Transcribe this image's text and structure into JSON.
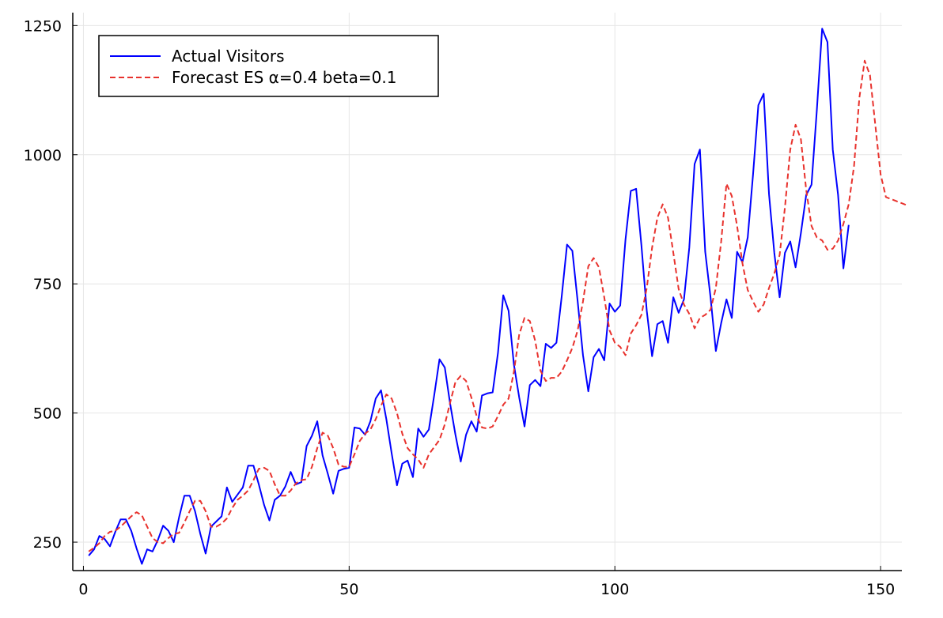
{
  "chart_data": {
    "type": "line",
    "title": "",
    "xlabel": "",
    "ylabel": "",
    "xlim": [
      -2,
      154
    ],
    "ylim": [
      195,
      1275
    ],
    "grid": true,
    "legend_position": "top-left",
    "x_ticks": [
      0,
      50,
      100,
      150
    ],
    "y_ticks": [
      250,
      500,
      750,
      1000,
      1250
    ],
    "x_tick_labels": [
      "0",
      "50",
      "100",
      "150"
    ],
    "y_tick_labels": [
      "250",
      "500",
      "750",
      "1000",
      "1250"
    ],
    "series": [
      {
        "name": "Actual Visitors",
        "color": "#0000ff",
        "style": "solid",
        "x_start": 1,
        "values": [
          224,
          236,
          262,
          256,
          242,
          270,
          294,
          294,
          272,
          238,
          208,
          236,
          232,
          254,
          282,
          272,
          250,
          298,
          340,
          340,
          310,
          266,
          228,
          280,
          290,
          300,
          356,
          328,
          342,
          356,
          398,
          398,
          362,
          322,
          292,
          332,
          340,
          358,
          386,
          362,
          366,
          436,
          456,
          484,
          418,
          382,
          344,
          388,
          392,
          394,
          472,
          470,
          458,
          484,
          528,
          544,
          488,
          422,
          360,
          402,
          408,
          376,
          470,
          454,
          468,
          534,
          604,
          588,
          518,
          458,
          406,
          458,
          484,
          464,
          534,
          538,
          540,
          616,
          728,
          698,
          594,
          530,
          474,
          554,
          564,
          552,
          634,
          626,
          636,
          726,
          826,
          814,
          716,
          612,
          542,
          608,
          624,
          602,
          712,
          696,
          708,
          836,
          930,
          934,
          824,
          698,
          610,
          672,
          678,
          636,
          724,
          694,
          720,
          820,
          982,
          1010,
          812,
          724,
          620,
          674,
          720,
          684,
          812,
          792,
          840,
          962,
          1096,
          1118,
          924,
          810,
          724,
          810,
          832,
          782,
          848,
          922,
          942,
          1086,
          1244,
          1218,
          1010,
          922,
          780,
          864
        ]
      },
      {
        "name": "Forecast ES α=0.4 beta=0.1",
        "color": "#e8322d",
        "style": "dashed",
        "x_start": 1,
        "values": [
          232,
          239,
          248,
          262,
          270,
          272,
          280,
          290,
          300,
          308,
          302,
          280,
          258,
          250,
          248,
          258,
          266,
          268,
          288,
          310,
          330,
          330,
          310,
          280,
          280,
          286,
          296,
          316,
          332,
          340,
          350,
          370,
          392,
          394,
          388,
          362,
          340,
          340,
          350,
          364,
          370,
          372,
          396,
          432,
          462,
          456,
          432,
          400,
          396,
          396,
          420,
          446,
          460,
          468,
          488,
          514,
          536,
          528,
          500,
          460,
          432,
          420,
          410,
          394,
          420,
          434,
          448,
          478,
          520,
          560,
          572,
          562,
          530,
          494,
          472,
          470,
          474,
          494,
          516,
          528,
          580,
          652,
          684,
          678,
          640,
          582,
          562,
          568,
          568,
          580,
          602,
          626,
          660,
          716,
          784,
          800,
          782,
          724,
          660,
          636,
          628,
          612,
          654,
          670,
          690,
          742,
          820,
          878,
          904,
          878,
          810,
          740,
          710,
          692,
          664,
          684,
          690,
          700,
          742,
          832,
          944,
          920,
          862,
          790,
          738,
          716,
          696,
          710,
          742,
          770,
          806,
          898,
          1010,
          1058,
          1030,
          932,
          862,
          840,
          834,
          816,
          818,
          834,
          866,
          904,
          978,
          1110,
          1182,
          1154,
          1058,
          962,
          918,
          914,
          910,
          906,
          902
        ]
      }
    ]
  }
}
